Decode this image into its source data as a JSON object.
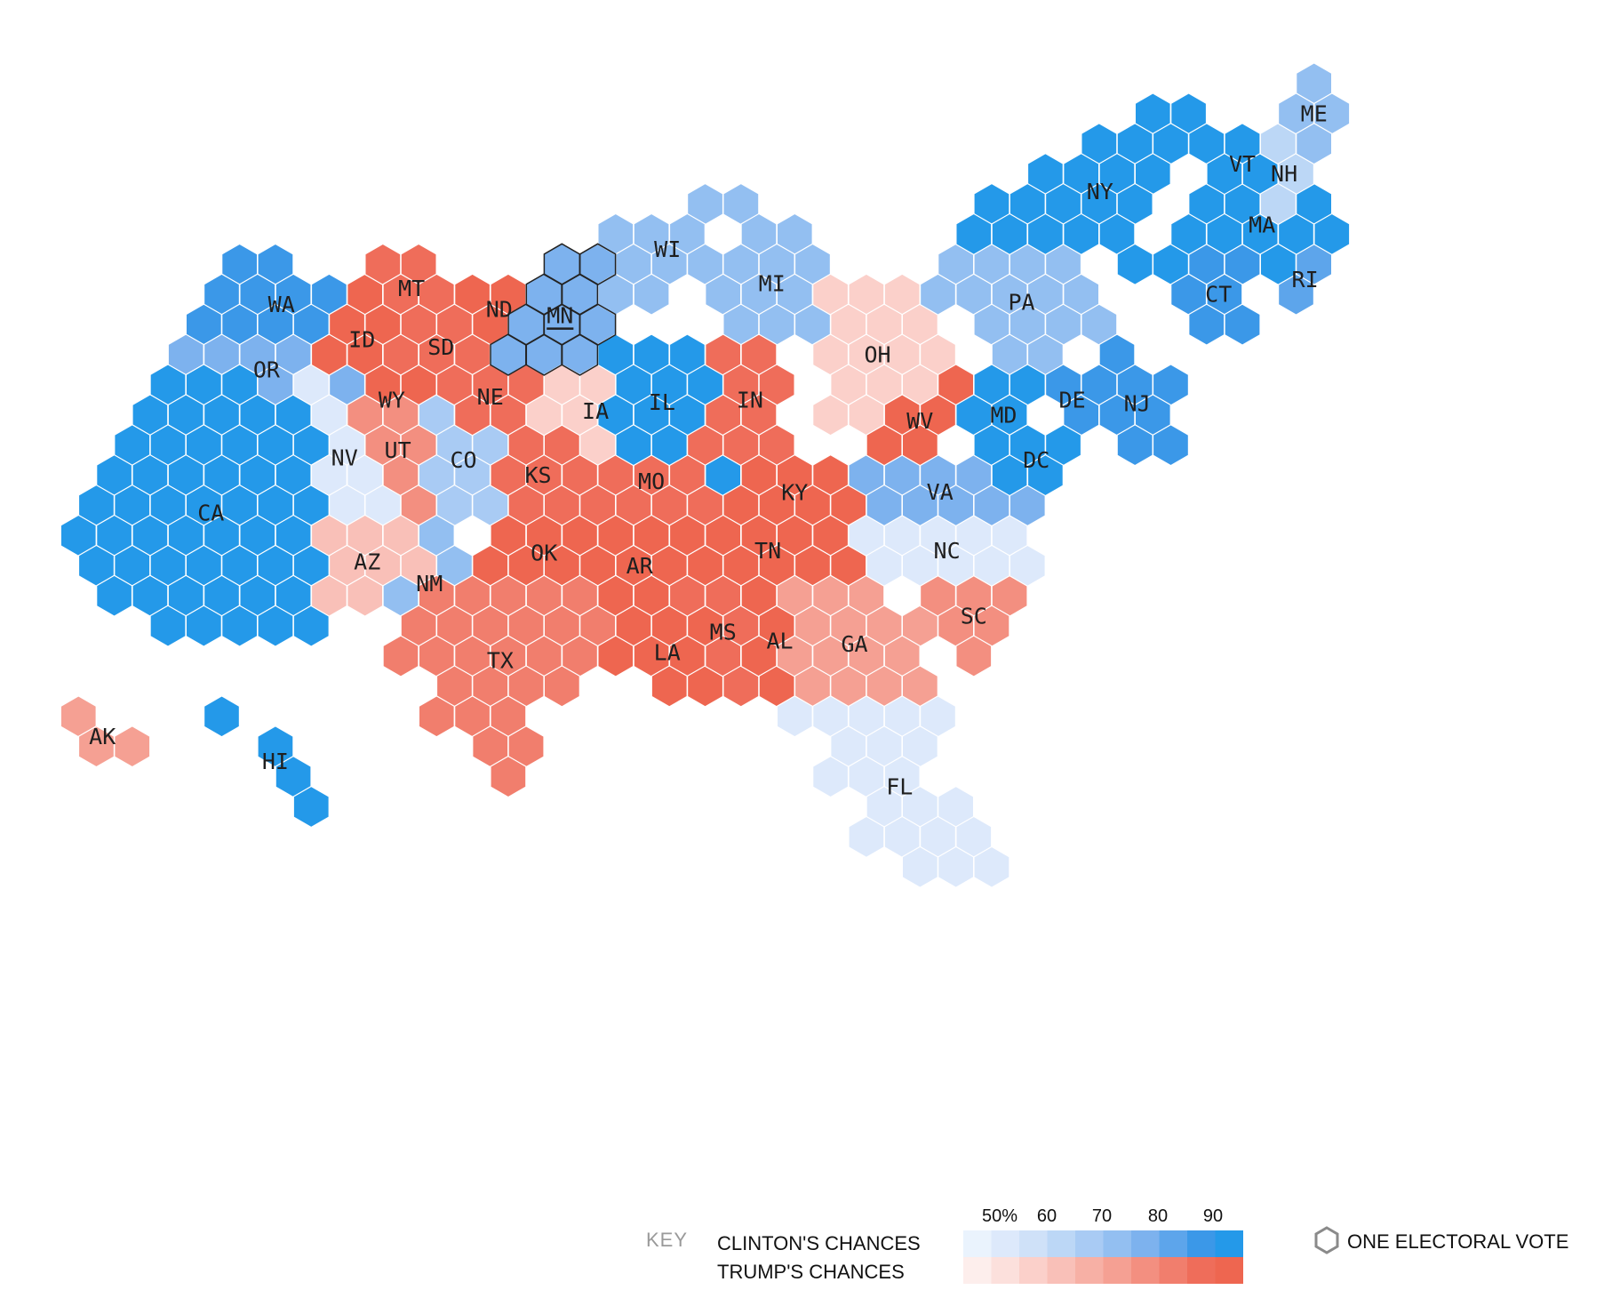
{
  "colors": {
    "clinton_scale": [
      "#eaf3fd",
      "#dde9fb",
      "#cfe1f8",
      "#bcd7f6",
      "#a9cbf4",
      "#93bff1",
      "#7db2ee",
      "#5da5eb",
      "#3b98e8",
      "#2499e9"
    ],
    "trump_scale": [
      "#fdeeec",
      "#fce0dc",
      "#fbd0ca",
      "#f9c0b8",
      "#f7b0a5",
      "#f5a093",
      "#f38f80",
      "#f17e6d",
      "#ef6d5a",
      "#ee6650"
    ],
    "outline": "#222222"
  },
  "states": [
    {
      "abbr": "WA",
      "share": 0.92,
      "party": "clinton"
    },
    {
      "abbr": "OR",
      "share": 0.85,
      "party": "clinton"
    },
    {
      "abbr": "CA",
      "share": 0.99,
      "party": "clinton"
    },
    {
      "abbr": "NV",
      "share": 0.55,
      "party": "clinton"
    },
    {
      "abbr": "ID",
      "share": 0.98,
      "party": "trump"
    },
    {
      "abbr": "MT",
      "share": 0.96,
      "party": "trump"
    },
    {
      "abbr": "WY",
      "share": 0.99,
      "party": "trump"
    },
    {
      "abbr": "UT",
      "share": 0.82,
      "party": "trump"
    },
    {
      "abbr": "AZ",
      "share": 0.66,
      "party": "trump"
    },
    {
      "abbr": "CO",
      "share": 0.74,
      "party": "clinton"
    },
    {
      "abbr": "NM",
      "share": 0.8,
      "party": "clinton"
    },
    {
      "abbr": "ND",
      "share": 0.98,
      "party": "trump"
    },
    {
      "abbr": "SD",
      "share": 0.95,
      "party": "trump"
    },
    {
      "abbr": "NE",
      "share": 0.96,
      "party": "trump"
    },
    {
      "abbr": "KS",
      "share": 0.97,
      "party": "trump"
    },
    {
      "abbr": "OK",
      "share": 0.99,
      "party": "trump"
    },
    {
      "abbr": "TX",
      "share": 0.91,
      "party": "trump"
    },
    {
      "abbr": "MN",
      "share": 0.82,
      "party": "clinton"
    },
    {
      "abbr": "IA",
      "share": 0.62,
      "party": "trump"
    },
    {
      "abbr": "MO",
      "share": 0.95,
      "party": "trump"
    },
    {
      "abbr": "AR",
      "share": 0.99,
      "party": "trump"
    },
    {
      "abbr": "LA",
      "share": 0.98,
      "party": "trump"
    },
    {
      "abbr": "WI",
      "share": 0.8,
      "party": "clinton"
    },
    {
      "abbr": "IL",
      "share": 0.98,
      "party": "clinton"
    },
    {
      "abbr": "MI",
      "share": 0.76,
      "party": "clinton"
    },
    {
      "abbr": "IN",
      "share": 0.96,
      "party": "trump"
    },
    {
      "abbr": "OH",
      "share": 0.6,
      "party": "trump"
    },
    {
      "abbr": "KY",
      "share": 0.98,
      "party": "trump"
    },
    {
      "abbr": "TN",
      "share": 0.98,
      "party": "trump"
    },
    {
      "abbr": "MS",
      "share": 0.96,
      "party": "trump"
    },
    {
      "abbr": "AL",
      "share": 0.99,
      "party": "trump"
    },
    {
      "abbr": "GA",
      "share": 0.75,
      "party": "trump"
    },
    {
      "abbr": "FL",
      "share": 0.55,
      "party": "clinton"
    },
    {
      "abbr": "SC",
      "share": 0.82,
      "party": "trump"
    },
    {
      "abbr": "NC",
      "share": 0.55,
      "party": "clinton"
    },
    {
      "abbr": "VA",
      "share": 0.86,
      "party": "clinton"
    },
    {
      "abbr": "WV",
      "share": 0.99,
      "party": "trump"
    },
    {
      "abbr": "PA",
      "share": 0.76,
      "party": "clinton"
    },
    {
      "abbr": "MD",
      "share": 0.99,
      "party": "clinton"
    },
    {
      "abbr": "DE",
      "share": 0.95,
      "party": "clinton"
    },
    {
      "abbr": "DC",
      "share": 0.99,
      "party": "clinton"
    },
    {
      "abbr": "NJ",
      "share": 0.97,
      "party": "clinton"
    },
    {
      "abbr": "NY",
      "share": 0.99,
      "party": "clinton"
    },
    {
      "abbr": "CT",
      "share": 0.97,
      "party": "clinton"
    },
    {
      "abbr": "RI",
      "share": 0.9,
      "party": "clinton"
    },
    {
      "abbr": "MA",
      "share": 0.99,
      "party": "clinton"
    },
    {
      "abbr": "VT",
      "share": 0.98,
      "party": "clinton"
    },
    {
      "abbr": "NH",
      "share": 0.65,
      "party": "clinton"
    },
    {
      "abbr": "ME",
      "share": 0.8,
      "party": "clinton"
    },
    {
      "abbr": "AK",
      "share": 0.78,
      "party": "trump"
    },
    {
      "abbr": "HI",
      "share": 0.99,
      "party": "clinton"
    }
  ],
  "highlighted_state": "MN",
  "key": {
    "title": "KEY",
    "clinton_label": "CLINTON'S CHANCES",
    "trump_label": "TRUMP'S CHANCES",
    "ticks": [
      "50%",
      "60",
      "70",
      "80",
      "90"
    ],
    "hex_legend_label": "ONE ELECTORAL VOTE"
  }
}
